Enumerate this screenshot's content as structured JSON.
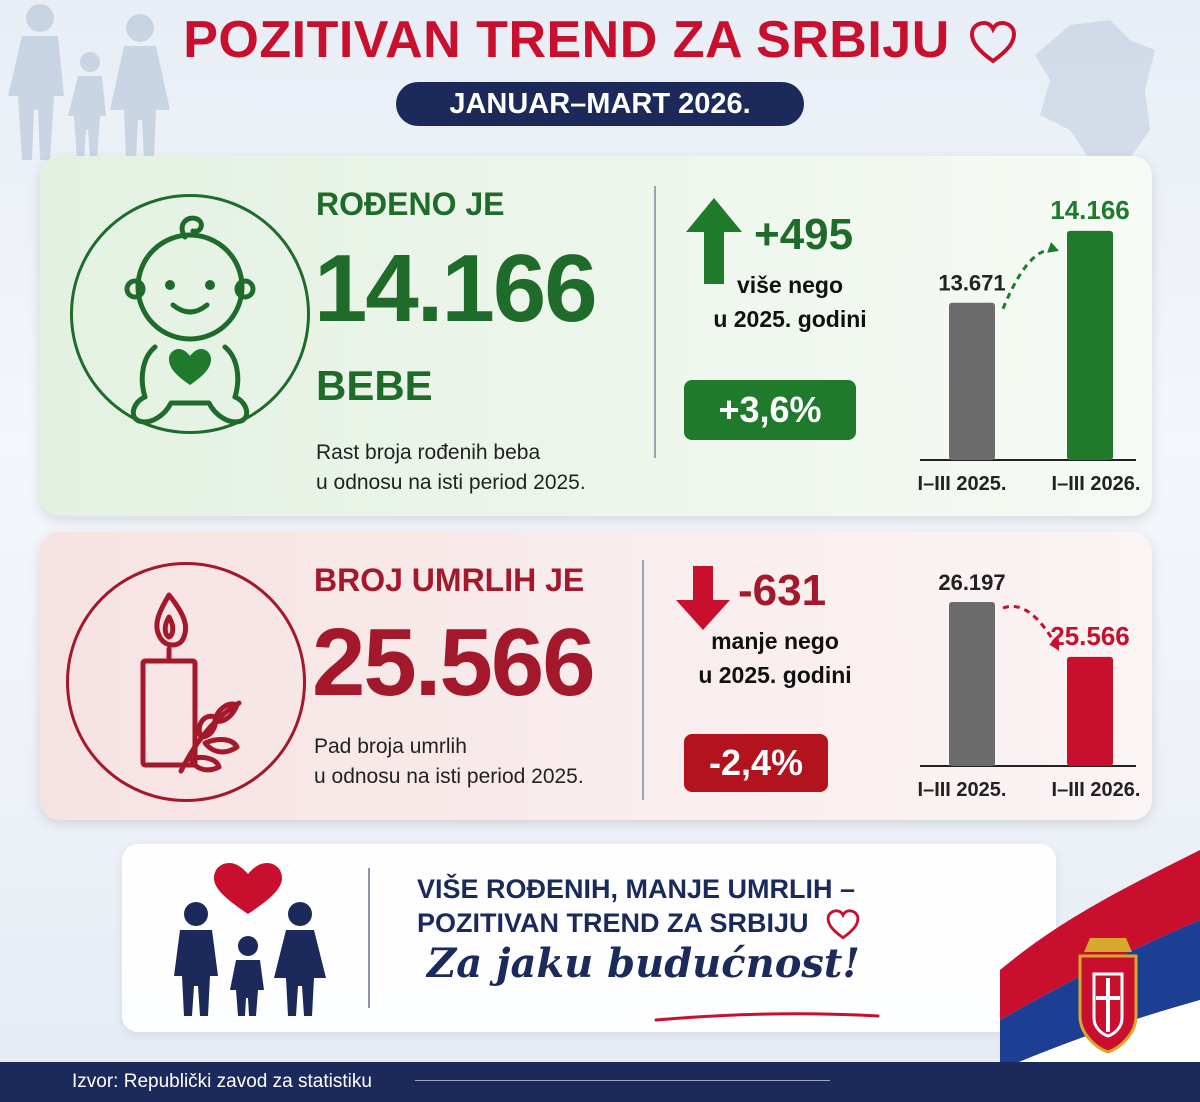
{
  "header": {
    "title": "POZITIVAN TREND ZA SRBIJU",
    "period": "JANUAR–MART 2026."
  },
  "births": {
    "label": "ROĐENO JE",
    "value": "14.166",
    "unit": "BEBE",
    "desc_line1": "Rast broja rođenih beba",
    "desc_line2": "u odnosu na isti period 2025.",
    "delta": "+495",
    "delta_line1": "više nego",
    "delta_line2": "u 2025. godini",
    "percent": "+3,6%"
  },
  "deaths": {
    "label": "BROJ UMRLIH JE",
    "value": "25.566",
    "desc_line1": "Pad broja umrlih",
    "desc_line2": "u odnosu na isti period 2025.",
    "delta": "-631",
    "delta_line1": "manje nego",
    "delta_line2": "u 2025. godini",
    "percent": "-2,4%"
  },
  "footer": {
    "line1": "VIŠE ROĐENIH, MANJE UMRLIH –",
    "line2": "POZITIVAN TREND ZA SRBIJU",
    "slogan": "Za jaku budućnost!"
  },
  "source": {
    "label": "Izvor:",
    "text": "Republički zavod za statistiku"
  },
  "colors": {
    "red": "#c8102e",
    "green": "#1f6b2a",
    "navy": "#1b2a5a",
    "gray_bar": "#6b6b6b"
  },
  "chart_data": [
    {
      "type": "bar",
      "categories": [
        "I–III 2025.",
        "I–III 2026."
      ],
      "values": [
        13671,
        14166
      ],
      "value_labels": [
        "13.671",
        "14.166"
      ],
      "colors": [
        "#6b6b6b",
        "#1f7a2c"
      ],
      "ylim": [
        13000,
        14200
      ]
    },
    {
      "type": "bar",
      "categories": [
        "I–III 2025.",
        "I–III 2026."
      ],
      "values": [
        26197,
        25566
      ],
      "value_labels": [
        "26.197",
        "25.566"
      ],
      "colors": [
        "#6b6b6b",
        "#c8102e"
      ],
      "ylim": [
        25000,
        26197
      ]
    }
  ]
}
